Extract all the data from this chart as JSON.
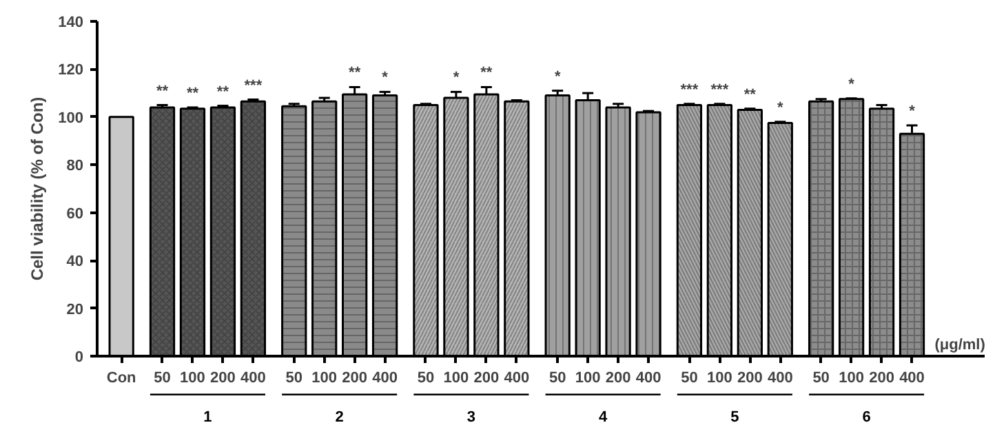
{
  "chart_data": {
    "type": "bar",
    "ylabel": "Cell viability (% of Con)",
    "categories": [
      "Con",
      "50",
      "100",
      "200",
      "400",
      "50",
      "100",
      "200",
      "400",
      "50",
      "100",
      "200",
      "400",
      "50",
      "100",
      "200",
      "400",
      "50",
      "100",
      "200",
      "400",
      "50",
      "100",
      "200",
      "400"
    ],
    "values": [
      100,
      104,
      103.5,
      104,
      106.5,
      104.5,
      106.5,
      109.5,
      109,
      105,
      108,
      109.5,
      106.5,
      109,
      107,
      104,
      102,
      105,
      105,
      103,
      97.5,
      106.5,
      107.5,
      103.5,
      93
    ],
    "errors": [
      null,
      [
        104,
        105
      ],
      [
        103.5,
        104
      ],
      [
        104,
        104.7
      ],
      [
        106.5,
        107.3
      ],
      [
        104.5,
        105.5
      ],
      [
        106.5,
        108
      ],
      [
        109.5,
        112.5
      ],
      [
        109,
        110.5
      ],
      [
        105,
        105.5
      ],
      [
        108,
        110.5
      ],
      [
        109.5,
        112.5
      ],
      [
        106.5,
        107
      ],
      [
        109,
        111
      ],
      [
        107,
        110
      ],
      [
        104,
        105.5
      ],
      [
        102,
        102.5
      ],
      [
        105,
        105.5
      ],
      [
        105,
        105.5
      ],
      [
        103,
        103.5
      ],
      [
        97.5,
        98
      ],
      [
        106.5,
        107.5
      ],
      [
        107.5,
        107.8
      ],
      [
        103.5,
        105
      ],
      [
        93,
        96.5
      ]
    ],
    "value_labels": [
      null,
      "**",
      "**",
      "**",
      "***",
      null,
      null,
      "**",
      "*",
      null,
      "*",
      "**",
      null,
      "*",
      null,
      null,
      null,
      "***",
      "***",
      "**",
      "*",
      null,
      "*",
      null,
      "*"
    ],
    "colors": [
      "#c8c8c8",
      "#555555",
      "#555555",
      "#555555",
      "#555555",
      "#8a8a8a",
      "#8a8a8a",
      "#8a8a8a",
      "#8a8a8a",
      "#b5b5b5",
      "#b5b5b5",
      "#b5b5b5",
      "#b5b5b5",
      "#a0a0a0",
      "#a0a0a0",
      "#a0a0a0",
      "#a0a0a0",
      "#a8a8a8",
      "#a8a8a8",
      "#a8a8a8",
      "#a8a8a8",
      "#8c8c8c",
      "#8c8c8c",
      "#8c8c8c",
      "#8c8c8c"
    ],
    "ylim": [
      0,
      140
    ],
    "yticks": [
      0,
      20,
      40,
      60,
      80,
      100,
      120,
      140
    ],
    "annotations": [
      "1",
      "2",
      "3",
      "4",
      "5",
      "6",
      "(μg/ml)"
    ],
    "grid": false
  }
}
